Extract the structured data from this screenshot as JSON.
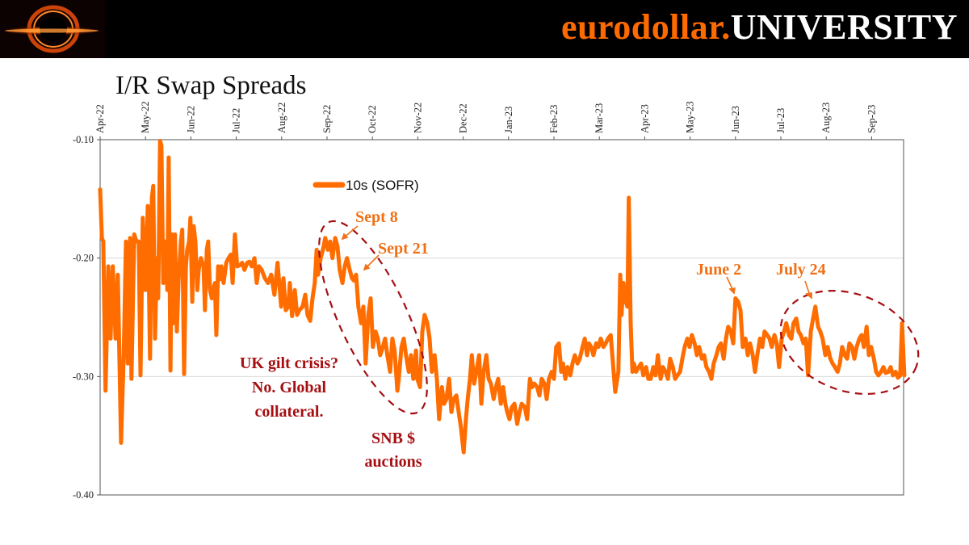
{
  "header": {
    "brand_part1": "eurodollar.",
    "brand_part2": "UNIVERSITY",
    "logo_icon": "black-hole-logo"
  },
  "colors": {
    "series": "#ff6d00",
    "annotation_orange": "#f07016",
    "annotation_red": "#a50f12",
    "brand_orange": "#ff6a00"
  },
  "chart_data": {
    "type": "line",
    "title": "I/R Swap Spreads",
    "xlabel": "",
    "ylabel": "",
    "ylim": [
      -0.4,
      -0.1
    ],
    "yticks": [
      "-0.10",
      "-0.20",
      "-0.30",
      "-0.40"
    ],
    "ytick_values": [
      -0.1,
      -0.2,
      -0.3,
      -0.4
    ],
    "xticks": [
      "Apr-22",
      "May-22",
      "Jun-22",
      "Jul-22",
      "Aug-22",
      "Sep-22",
      "Oct-22",
      "Nov-22",
      "Dec-22",
      "Jan-23",
      "Feb-23",
      "Mar-23",
      "Apr-23",
      "May-23",
      "Jun-23",
      "Jul-23",
      "Aug-23",
      "Sep-23"
    ],
    "x_units": "months since Apr-22",
    "xlim": [
      0,
      17.7
    ],
    "grid": "horizontal",
    "legend": {
      "position": "top-left",
      "entries": [
        "10s (SOFR)"
      ]
    },
    "series": [
      {
        "name": "10s (SOFR)",
        "x": [
          0,
          0.04,
          0.07,
          0.12,
          0.18,
          0.23,
          0.28,
          0.34,
          0.39,
          0.46,
          0.52,
          0.57,
          0.61,
          0.66,
          0.69,
          0.75,
          0.8,
          0.85,
          0.89,
          0.94,
          1.0,
          1.05,
          1.1,
          1.14,
          1.17,
          1.21,
          1.25,
          1.28,
          1.32,
          1.35,
          1.39,
          1.44,
          1.48,
          1.51,
          1.55,
          1.58,
          1.62,
          1.65,
          1.69,
          1.73,
          1.78,
          1.81,
          1.85,
          1.89,
          1.92,
          1.96,
          1.99,
          2.03,
          2.06,
          2.1,
          2.14,
          2.17,
          2.22,
          2.28,
          2.31,
          2.35,
          2.38,
          2.42,
          2.46,
          2.49,
          2.53,
          2.56,
          2.6,
          2.63,
          2.67,
          2.72,
          2.78,
          2.83,
          2.88,
          2.92,
          2.97,
          3.02,
          3.08,
          3.13,
          3.18,
          3.24,
          3.29,
          3.34,
          3.4,
          3.45,
          3.5,
          3.56,
          3.63,
          3.7,
          3.77,
          3.84,
          3.91,
          3.99,
          4.04,
          4.09,
          4.15,
          4.18,
          4.23,
          4.29,
          4.34,
          4.39,
          4.46,
          4.52,
          4.57,
          4.63,
          4.68,
          4.73,
          4.77,
          4.8,
          4.86,
          4.91,
          4.96,
          5.02,
          5.07,
          5.12,
          5.18,
          5.23,
          5.28,
          5.34,
          5.39,
          5.44,
          5.5,
          5.55,
          5.59,
          5.64,
          5.69,
          5.75,
          5.8,
          5.85,
          5.91,
          5.96,
          6.01,
          6.07,
          6.12,
          6.17,
          6.23,
          6.28,
          6.33,
          6.39,
          6.44,
          6.49,
          6.55,
          6.58,
          6.64,
          6.69,
          6.74,
          6.8,
          6.85,
          6.9,
          6.96,
          6.99,
          7.05,
          7.1,
          7.15,
          7.21,
          7.26,
          7.31,
          7.37,
          7.42,
          7.47,
          7.53,
          7.58,
          7.63,
          7.69,
          7.74,
          7.79,
          7.85,
          7.9,
          7.95,
          8.01,
          8.06,
          8.1,
          8.15,
          8.19,
          8.24,
          8.29,
          8.35,
          8.4,
          8.45,
          8.51,
          8.56,
          8.61,
          8.67,
          8.72,
          8.77,
          8.83,
          8.88,
          8.93,
          8.97,
          9.02,
          9.07,
          9.13,
          9.19,
          9.24,
          9.29,
          9.36,
          9.41,
          9.47,
          9.52,
          9.57,
          9.63,
          9.68,
          9.73,
          9.79,
          9.84,
          9.89,
          9.95,
          10.0,
          10.05,
          10.11,
          10.16,
          10.2,
          10.25,
          10.3,
          10.36,
          10.41,
          10.46,
          10.52,
          10.57,
          10.63,
          10.68,
          10.73,
          10.77,
          10.82,
          10.87,
          10.93,
          10.98,
          11.03,
          11.09,
          11.14,
          11.19,
          11.25,
          11.3,
          11.35,
          11.42,
          11.46,
          11.49,
          11.53,
          11.56,
          11.62,
          11.65,
          11.69,
          11.73,
          11.76,
          11.81,
          11.87,
          11.92,
          11.97,
          12.03,
          12.08,
          12.13,
          12.19,
          12.24,
          12.29,
          12.35,
          12.4,
          12.46,
          12.51,
          12.56,
          12.62,
          12.67,
          12.72,
          12.78,
          12.83,
          12.88,
          12.94,
          12.99,
          13.04,
          13.1,
          13.15,
          13.2,
          13.26,
          13.31,
          13.36,
          13.42,
          13.47,
          13.52,
          13.58,
          13.63,
          13.68,
          13.74,
          13.79,
          13.84,
          13.9,
          13.95,
          14.0,
          14.06,
          14.11,
          14.16,
          14.22,
          14.27,
          14.32,
          14.38,
          14.43,
          14.48,
          14.54,
          14.59,
          14.64,
          14.7,
          14.75,
          14.8,
          14.86,
          14.91,
          14.96,
          15.02,
          15.07,
          15.12,
          15.18,
          15.23,
          15.28,
          15.34,
          15.39,
          15.44,
          15.5,
          15.55,
          15.6,
          15.66,
          15.71,
          15.76,
          15.82,
          15.87,
          15.92,
          15.98,
          16.03,
          16.09,
          16.14,
          16.19,
          16.25,
          16.3,
          16.35,
          16.41,
          16.46,
          16.51,
          16.57,
          16.62,
          16.67,
          16.73,
          16.78,
          16.83,
          16.89,
          16.94,
          16.99,
          17.05,
          17.1,
          17.15,
          17.21,
          17.26,
          17.31,
          17.37,
          17.42,
          17.47,
          17.53,
          17.58,
          17.63,
          17.67,
          17.72
        ],
        "values": [
          -0.142,
          -0.183,
          -0.186,
          -0.312,
          -0.207,
          -0.268,
          -0.207,
          -0.268,
          -0.214,
          -0.356,
          -0.282,
          -0.186,
          -0.289,
          -0.183,
          -0.302,
          -0.18,
          -0.186,
          -0.186,
          -0.299,
          -0.166,
          -0.227,
          -0.156,
          -0.285,
          -0.149,
          -0.139,
          -0.268,
          -0.2,
          -0.234,
          -0.101,
          -0.105,
          -0.221,
          -0.186,
          -0.227,
          -0.115,
          -0.295,
          -0.18,
          -0.255,
          -0.18,
          -0.262,
          -0.218,
          -0.186,
          -0.176,
          -0.298,
          -0.207,
          -0.193,
          -0.186,
          -0.166,
          -0.237,
          -0.173,
          -0.186,
          -0.227,
          -0.21,
          -0.2,
          -0.207,
          -0.244,
          -0.193,
          -0.186,
          -0.227,
          -0.234,
          -0.227,
          -0.221,
          -0.265,
          -0.207,
          -0.218,
          -0.207,
          -0.221,
          -0.204,
          -0.2,
          -0.197,
          -0.221,
          -0.18,
          -0.207,
          -0.206,
          -0.204,
          -0.21,
          -0.204,
          -0.203,
          -0.207,
          -0.2,
          -0.221,
          -0.207,
          -0.21,
          -0.217,
          -0.221,
          -0.214,
          -0.231,
          -0.204,
          -0.241,
          -0.217,
          -0.244,
          -0.241,
          -0.221,
          -0.249,
          -0.227,
          -0.248,
          -0.244,
          -0.241,
          -0.231,
          -0.248,
          -0.253,
          -0.234,
          -0.221,
          -0.193,
          -0.214,
          -0.2,
          -0.193,
          -0.183,
          -0.193,
          -0.186,
          -0.2,
          -0.183,
          -0.19,
          -0.21,
          -0.221,
          -0.207,
          -0.2,
          -0.21,
          -0.217,
          -0.219,
          -0.214,
          -0.241,
          -0.255,
          -0.241,
          -0.289,
          -0.248,
          -0.234,
          -0.275,
          -0.262,
          -0.268,
          -0.282,
          -0.275,
          -0.268,
          -0.282,
          -0.296,
          -0.268,
          -0.278,
          -0.312,
          -0.302,
          -0.275,
          -0.268,
          -0.282,
          -0.296,
          -0.282,
          -0.302,
          -0.278,
          -0.302,
          -0.309,
          -0.262,
          -0.248,
          -0.255,
          -0.268,
          -0.296,
          -0.282,
          -0.302,
          -0.336,
          -0.309,
          -0.323,
          -0.319,
          -0.302,
          -0.33,
          -0.319,
          -0.316,
          -0.33,
          -0.343,
          -0.364,
          -0.336,
          -0.319,
          -0.302,
          -0.282,
          -0.306,
          -0.296,
          -0.282,
          -0.323,
          -0.296,
          -0.282,
          -0.302,
          -0.306,
          -0.319,
          -0.309,
          -0.302,
          -0.323,
          -0.309,
          -0.323,
          -0.33,
          -0.336,
          -0.326,
          -0.323,
          -0.34,
          -0.33,
          -0.323,
          -0.326,
          -0.336,
          -0.302,
          -0.309,
          -0.306,
          -0.309,
          -0.316,
          -0.302,
          -0.306,
          -0.319,
          -0.302,
          -0.296,
          -0.302,
          -0.275,
          -0.272,
          -0.296,
          -0.289,
          -0.302,
          -0.292,
          -0.299,
          -0.289,
          -0.282,
          -0.289,
          -0.285,
          -0.275,
          -0.268,
          -0.282,
          -0.272,
          -0.275,
          -0.282,
          -0.272,
          -0.275,
          -0.268,
          -0.275,
          -0.272,
          -0.268,
          -0.265,
          -0.289,
          -0.313,
          -0.296,
          -0.214,
          -0.248,
          -0.221,
          -0.234,
          -0.241,
          -0.149,
          -0.255,
          -0.296,
          -0.289,
          -0.296,
          -0.292,
          -0.289,
          -0.299,
          -0.292,
          -0.302,
          -0.302,
          -0.292,
          -0.299,
          -0.282,
          -0.302,
          -0.292,
          -0.296,
          -0.302,
          -0.285,
          -0.292,
          -0.302,
          -0.299,
          -0.296,
          -0.285,
          -0.275,
          -0.268,
          -0.275,
          -0.265,
          -0.272,
          -0.282,
          -0.275,
          -0.285,
          -0.282,
          -0.292,
          -0.296,
          -0.302,
          -0.289,
          -0.282,
          -0.275,
          -0.272,
          -0.285,
          -0.268,
          -0.258,
          -0.262,
          -0.272,
          -0.234,
          -0.237,
          -0.244,
          -0.275,
          -0.268,
          -0.282,
          -0.272,
          -0.282,
          -0.296,
          -0.282,
          -0.268,
          -0.275,
          -0.262,
          -0.265,
          -0.268,
          -0.275,
          -0.265,
          -0.272,
          -0.292,
          -0.268,
          -0.262,
          -0.255,
          -0.265,
          -0.268,
          -0.255,
          -0.251,
          -0.262,
          -0.265,
          -0.272,
          -0.268,
          -0.299,
          -0.262,
          -0.251,
          -0.241,
          -0.258,
          -0.262,
          -0.268,
          -0.282,
          -0.275,
          -0.285,
          -0.289,
          -0.292,
          -0.296,
          -0.289,
          -0.275,
          -0.282,
          -0.285,
          -0.272,
          -0.275,
          -0.285,
          -0.275,
          -0.268,
          -0.265,
          -0.275,
          -0.258,
          -0.282,
          -0.275,
          -0.285,
          -0.296,
          -0.299,
          -0.296,
          -0.292,
          -0.297,
          -0.296,
          -0.292,
          -0.299,
          -0.296,
          -0.301,
          -0.299,
          -0.255,
          -0.299
        ]
      }
    ],
    "annotations": [
      {
        "text": "Sept 8",
        "color": "orange"
      },
      {
        "text": "Sept 21",
        "color": "orange"
      },
      {
        "text": "June 2",
        "color": "orange"
      },
      {
        "text": "July 24",
        "color": "orange"
      },
      {
        "lines": [
          "UK gilt crisis?",
          "No. Global",
          "collateral."
        ],
        "color": "red"
      },
      {
        "lines": [
          "SNB $",
          "auctions"
        ],
        "color": "red"
      }
    ]
  }
}
